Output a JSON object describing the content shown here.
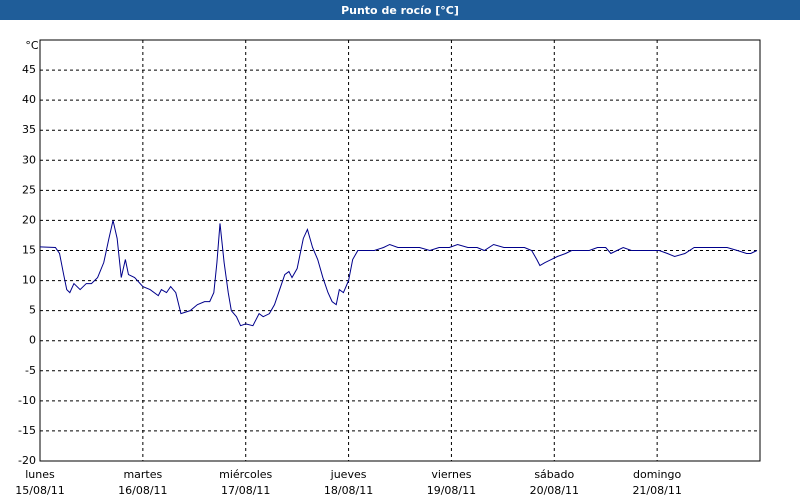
{
  "chart_data": {
    "type": "line",
    "title": "Punto de rocío [°C]",
    "y_label": "°C",
    "x": [
      0,
      0.15,
      0.19,
      0.23,
      0.26,
      0.29,
      0.33,
      0.39,
      0.45,
      0.5,
      0.56,
      0.62,
      0.67,
      0.71,
      0.75,
      0.79,
      0.83,
      0.86,
      0.92,
      1.0,
      1.07,
      1.15,
      1.18,
      1.23,
      1.27,
      1.32,
      1.37,
      1.46,
      1.53,
      1.6,
      1.65,
      1.69,
      1.72,
      1.75,
      1.79,
      1.83,
      1.86,
      1.91,
      1.95,
      2.0,
      2.07,
      2.13,
      2.17,
      2.23,
      2.28,
      2.33,
      2.38,
      2.42,
      2.45,
      2.5,
      2.56,
      2.6,
      2.65,
      2.7,
      2.75,
      2.8,
      2.84,
      2.88,
      2.91,
      2.95,
      3.0,
      3.04,
      3.09,
      3.16,
      3.25,
      3.34,
      3.4,
      3.48,
      3.59,
      3.69,
      3.79,
      3.88,
      3.98,
      4.06,
      4.16,
      4.25,
      4.32,
      4.41,
      4.51,
      4.61,
      4.71,
      4.78,
      4.83,
      4.86,
      4.91,
      4.97,
      5.03,
      5.11,
      5.17,
      5.24,
      5.34,
      5.42,
      5.5,
      5.55,
      5.61,
      5.67,
      5.75,
      5.87,
      6.02,
      6.1,
      6.17,
      6.27,
      6.36,
      6.46,
      6.55,
      6.68,
      6.78,
      6.87,
      6.91,
      6.97
    ],
    "series": [
      {
        "color": "#00008b",
        "values": [
          15.6,
          15.5,
          14.5,
          11,
          8.5,
          8,
          9.5,
          8.5,
          9.5,
          9.5,
          10.5,
          13,
          17,
          20,
          17,
          10.5,
          13.5,
          11,
          10.5,
          9,
          8.5,
          7.5,
          8.5,
          8,
          9,
          8,
          4.5,
          5,
          6,
          6.5,
          6.5,
          8,
          13,
          19.5,
          13,
          8,
          5,
          4,
          2.5,
          2.8,
          2.5,
          4.5,
          4,
          4.5,
          6,
          8.5,
          11,
          11.5,
          10.5,
          12,
          17,
          18.5,
          15.5,
          13.5,
          10.5,
          8,
          6.5,
          6,
          8.5,
          8,
          10,
          13.5,
          15,
          15,
          15,
          15.5,
          16,
          15.5,
          15.5,
          15.5,
          15,
          15.5,
          15.5,
          16,
          15.5,
          15.5,
          15,
          16,
          15.5,
          15.5,
          15.5,
          15,
          13.5,
          12.5,
          13,
          13.5,
          14,
          14.5,
          15,
          15,
          15,
          15.5,
          15.5,
          14.5,
          15,
          15.5,
          15,
          15,
          15,
          14.5,
          14,
          14.5,
          15.5,
          15.5,
          15.5,
          15.5,
          15,
          14.5,
          14.5,
          15
        ]
      }
    ],
    "xlim": [
      0,
      7
    ],
    "xticks": [
      {
        "value": 0,
        "label": "15/08/11"
      },
      {
        "value": 1,
        "label": "16/08/11"
      },
      {
        "value": 2,
        "label": "17/08/11"
      },
      {
        "value": 3,
        "label": "18/08/11"
      },
      {
        "value": 4,
        "label": "19/08/11"
      },
      {
        "value": 5,
        "label": "20/08/11"
      },
      {
        "value": 6,
        "label": "21/08/11"
      }
    ],
    "xtick_weekdays": [
      "lunes",
      "martes",
      "miércoles",
      "jueves",
      "viernes",
      "sábado",
      "domingo"
    ],
    "ylim": [
      -20,
      50
    ],
    "yticks": [
      -20,
      -15,
      -10,
      -5,
      0,
      5,
      10,
      15,
      20,
      25,
      30,
      35,
      40,
      45
    ],
    "grid": true
  }
}
